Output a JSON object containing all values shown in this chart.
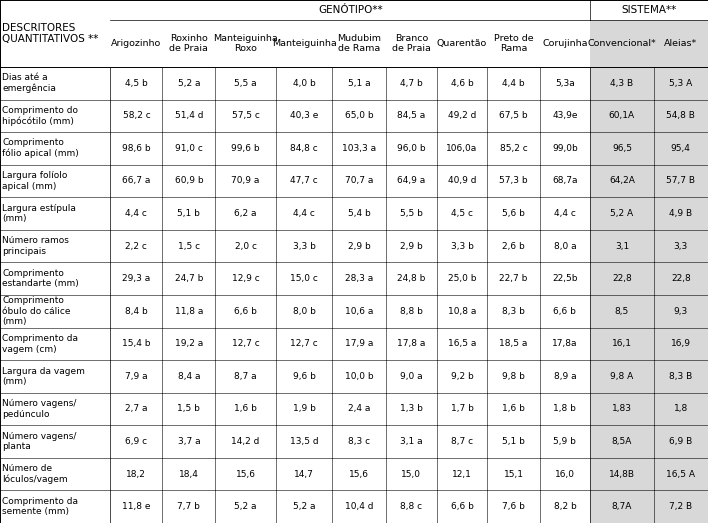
{
  "col_headers_genotype": [
    "Arigozinho",
    "Roxinho\nde Praia",
    "Manteiguinha\nRoxo",
    "Manteiguinha",
    "Mudubim\nde Rama",
    "Branco\nde Praia",
    "Quarentão",
    "Preto de\nRama",
    "Corujinha"
  ],
  "col_headers_sistema": [
    "Convencional*",
    "Aleias*"
  ],
  "row_labels": [
    "Dias até a\nemergência",
    "Comprimento do\nhipócótilo (mm)",
    "Comprimento\nfólio apical (mm)",
    "Largura folíolo\napical (mm)",
    "Largura estípula\n(mm)",
    "Número ramos\nprincipais",
    "Comprimento\nestandarte (mm)",
    "Comprimento\nóbulo do cálice\n(mm)",
    "Comprimento da\nvagem (cm)",
    "Largura da vagem\n(mm)",
    "Número vagens/\npedúnculo",
    "Número vagens/\nplanta",
    "Número de\nlóculos/vagem",
    "Comprimento da\nsemente (mm)"
  ],
  "data": [
    [
      "4,5 b",
      "5,2 a",
      "5,5 a",
      "4,0 b",
      "5,1 a",
      "4,7 b",
      "4,6 b",
      "4,4 b",
      "5,3a",
      "4,3 B",
      "5,3 A"
    ],
    [
      "58,2 c",
      "51,4 d",
      "57,5 c",
      "40,3 e",
      "65,0 b",
      "84,5 a",
      "49,2 d",
      "67,5 b",
      "43,9e",
      "60,1A",
      "54,8 B"
    ],
    [
      "98,6 b",
      "91,0 c",
      "99,6 b",
      "84,8 c",
      "103,3 a",
      "96,0 b",
      "106,0a",
      "85,2 c",
      "99,0b",
      "96,5",
      "95,4"
    ],
    [
      "66,7 a",
      "60,9 b",
      "70,9 a",
      "47,7 c",
      "70,7 a",
      "64,9 a",
      "40,9 d",
      "57,3 b",
      "68,7a",
      "64,2A",
      "57,7 B"
    ],
    [
      "4,4 c",
      "5,1 b",
      "6,2 a",
      "4,4 c",
      "5,4 b",
      "5,5 b",
      "4,5 c",
      "5,6 b",
      "4,4 c",
      "5,2 A",
      "4,9 B"
    ],
    [
      "2,2 c",
      "1,5 c",
      "2,0 c",
      "3,3 b",
      "2,9 b",
      "2,9 b",
      "3,3 b",
      "2,6 b",
      "8,0 a",
      "3,1",
      "3,3"
    ],
    [
      "29,3 a",
      "24,7 b",
      "12,9 c",
      "15,0 c",
      "28,3 a",
      "24,8 b",
      "25,0 b",
      "22,7 b",
      "22,5b",
      "22,8",
      "22,8"
    ],
    [
      "8,4 b",
      "11,8 a",
      "6,6 b",
      "8,0 b",
      "10,6 a",
      "8,8 b",
      "10,8 a",
      "8,3 b",
      "6,6 b",
      "8,5",
      "9,3"
    ],
    [
      "15,4 b",
      "19,2 a",
      "12,7 c",
      "12,7 c",
      "17,9 a",
      "17,8 a",
      "16,5 a",
      "18,5 a",
      "17,8a",
      "16,1",
      "16,9"
    ],
    [
      "7,9 a",
      "8,4 a",
      "8,7 a",
      "9,6 b",
      "10,0 b",
      "9,0 a",
      "9,2 b",
      "9,8 b",
      "8,9 a",
      "9,8 A",
      "8,3 B"
    ],
    [
      "2,7 a",
      "1,5 b",
      "1,6 b",
      "1,9 b",
      "2,4 a",
      "1,3 b",
      "1,7 b",
      "1,6 b",
      "1,8 b",
      "1,83",
      "1,8"
    ],
    [
      "6,9 c",
      "3,7 a",
      "14,2 d",
      "13,5 d",
      "8,3 c",
      "3,1 a",
      "8,7 c",
      "5,1 b",
      "5,9 b",
      "8,5A",
      "6,9 B"
    ],
    [
      "18,2",
      "18,4",
      "15,6",
      "14,7",
      "15,6",
      "15,0",
      "12,1",
      "15,1",
      "16,0",
      "14,8B",
      "16,5 A"
    ],
    [
      "11,8 e",
      "7,7 b",
      "5,2 a",
      "5,2 a",
      "10,4 d",
      "8,8 c",
      "6,6 b",
      "7,6 b",
      "8,2 b",
      "8,7A",
      "7,2 B"
    ]
  ],
  "header_label": "DESCRITORES\nQUANTITATIVOS **",
  "genotype_header": "GENÓTIPO**",
  "sistema_header": "SISTEMA**",
  "sistema_bg": "#d8d8d8",
  "fs_main": 6.5,
  "fs_header": 7.5,
  "fs_colhdr": 6.8,
  "fs_data": 6.5
}
